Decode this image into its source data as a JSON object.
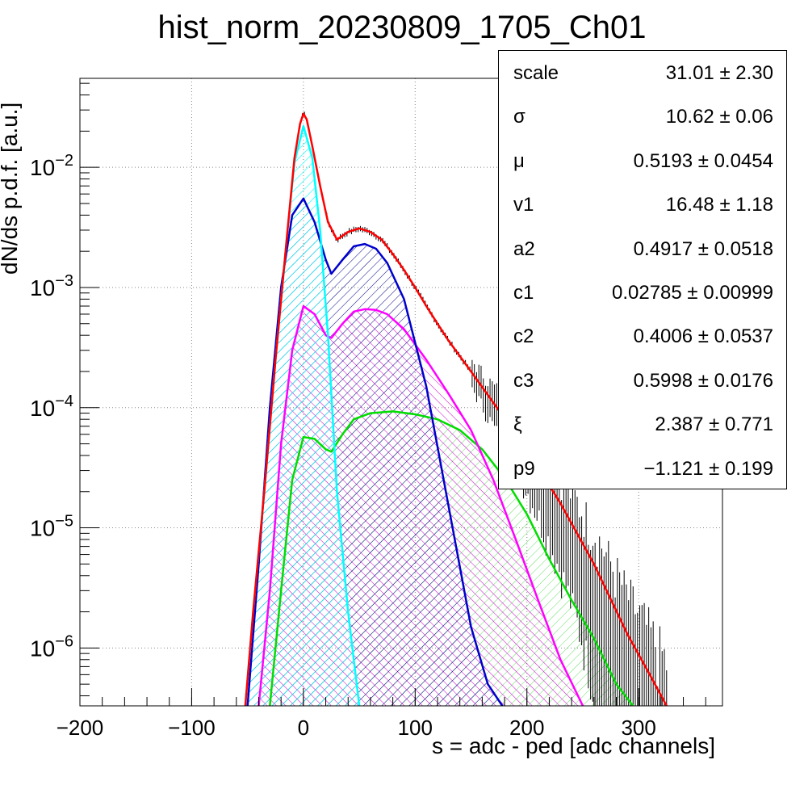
{
  "chart_data": {
    "type": "line",
    "title": "hist_norm_20230809_1705_Ch01",
    "xlabel": "s = adc - ped [adc channels]",
    "ylabel": "dN/ds p.d.f. [a.u.]",
    "xlim": [
      -200,
      375
    ],
    "ylim": [
      3.3e-07,
      0.055
    ],
    "yscale": "log",
    "grid": true,
    "x_ticks": [
      -200,
      -100,
      0,
      100,
      200,
      300
    ],
    "x_tick_labels": [
      "−200",
      "−100",
      "0",
      "100",
      "200",
      "300"
    ],
    "y_ticks": [
      1e-06,
      1e-05,
      0.0001,
      0.001,
      0.01
    ],
    "y_tick_labels": [
      {
        "base": "10",
        "exp": "−6"
      },
      {
        "base": "10",
        "exp": "−5"
      },
      {
        "base": "10",
        "exp": "−4"
      },
      {
        "base": "10",
        "exp": "−3"
      },
      {
        "base": "10",
        "exp": "−2"
      }
    ],
    "series": [
      {
        "color": "#ff0000",
        "fill": false,
        "x": [
          -52,
          -45,
          -35,
          -25,
          -15,
          -8,
          -3,
          0,
          3,
          8,
          15,
          22,
          30,
          40,
          50,
          60,
          70,
          80,
          90,
          100,
          110,
          120,
          130,
          150,
          170,
          200,
          230,
          260,
          290,
          310,
          325
        ],
        "y": [
          3.3e-07,
          2e-06,
          2e-05,
          0.00025,
          0.0025,
          0.012,
          0.023,
          0.028,
          0.025,
          0.015,
          0.007,
          0.0035,
          0.0025,
          0.0029,
          0.0031,
          0.0029,
          0.0025,
          0.0019,
          0.0014,
          0.001,
          0.0007,
          0.0005,
          0.00036,
          0.0002,
          0.00011,
          4.5e-05,
          1.6e-05,
          5e-06,
          1.3e-06,
          6e-07,
          3.3e-07
        ]
      },
      {
        "color": "#00ffff",
        "fill": true,
        "x": [
          -52,
          -45,
          -35,
          -25,
          -15,
          -8,
          0,
          8,
          15,
          22,
          30,
          40,
          50
        ],
        "y": [
          3.3e-07,
          2e-06,
          2e-05,
          0.00025,
          0.0025,
          0.011,
          0.022,
          0.012,
          0.003,
          0.0004,
          2e-05,
          2e-06,
          3.3e-07
        ]
      },
      {
        "color": "#0000cc",
        "fill": true,
        "x": [
          -50,
          -40,
          -30,
          -20,
          -10,
          0,
          10,
          20,
          25,
          35,
          45,
          55,
          65,
          75,
          90,
          110,
          130,
          150,
          165,
          178
        ],
        "y": [
          3.3e-07,
          5e-06,
          0.0001,
          0.001,
          0.004,
          0.0055,
          0.0035,
          0.0017,
          0.0013,
          0.0017,
          0.0022,
          0.0023,
          0.0021,
          0.0016,
          0.0008,
          0.00015,
          1.5e-05,
          1.5e-06,
          5e-07,
          3.3e-07
        ]
      },
      {
        "color": "#ff00ff",
        "fill": true,
        "x": [
          -40,
          -30,
          -20,
          -10,
          0,
          10,
          20,
          25,
          35,
          45,
          55,
          65,
          75,
          90,
          110,
          130,
          150,
          170,
          190,
          210,
          230,
          250
        ],
        "y": [
          3.3e-07,
          3e-06,
          5e-05,
          0.0003,
          0.0007,
          0.0006,
          0.0004,
          0.00038,
          0.0005,
          0.00063,
          0.00066,
          0.00065,
          0.0006,
          0.00045,
          0.00025,
          0.00013,
          6.5e-05,
          2.5e-05,
          8e-06,
          2.5e-06,
          8e-07,
          3.3e-07
        ]
      },
      {
        "color": "#00dd00",
        "fill": true,
        "x": [
          -30,
          -20,
          -10,
          0,
          10,
          20,
          25,
          35,
          45,
          60,
          80,
          100,
          120,
          140,
          160,
          180,
          200,
          220,
          240,
          260,
          280,
          295
        ],
        "y": [
          3.3e-07,
          3e-06,
          2.5e-05,
          5.7e-05,
          5.5e-05,
          4.5e-05,
          4.3e-05,
          6e-05,
          8e-05,
          9e-05,
          9.3e-05,
          8.8e-05,
          8e-05,
          6.5e-05,
          4.5e-05,
          2.6e-05,
          1.3e-05,
          5.5e-06,
          2.5e-06,
          1.2e-06,
          5e-07,
          3.3e-07
        ]
      }
    ],
    "stats": [
      {
        "name": "scale",
        "value": "31.01 ± 2.30"
      },
      {
        "name": "σ",
        "value": "10.62 ± 0.06"
      },
      {
        "name": "μ",
        "value": "0.5193 ± 0.0454"
      },
      {
        "name": "v1",
        "value": "16.48 ± 1.18"
      },
      {
        "name": "a2",
        "value": "0.4917 ± 0.0518"
      },
      {
        "name": "c1",
        "value": "0.02785 ± 0.00999"
      },
      {
        "name": "c2",
        "value": "0.4006 ± 0.0537"
      },
      {
        "name": "c3",
        "value": "0.5998 ± 0.0176"
      },
      {
        "name": "ξ",
        "value": "2.387 ± 0.771"
      },
      {
        "name": "p9",
        "value": "−1.121 ± 0.199"
      }
    ]
  }
}
